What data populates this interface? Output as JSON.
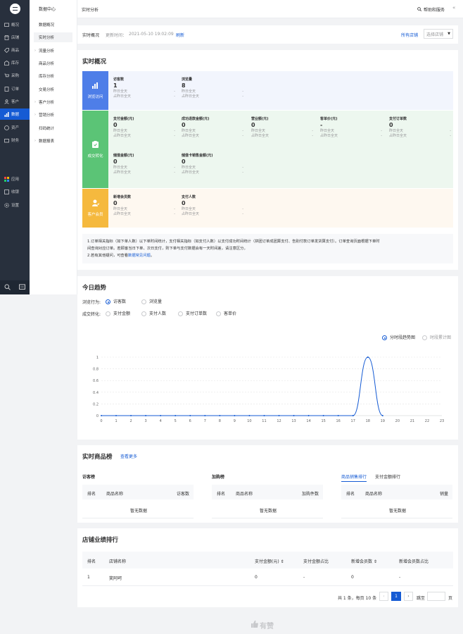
{
  "sidebar": {
    "items": [
      {
        "label": "概况"
      },
      {
        "label": "店铺"
      },
      {
        "label": "商品"
      },
      {
        "label": "库存"
      },
      {
        "label": "采购"
      },
      {
        "label": "订单"
      },
      {
        "label": "客户"
      },
      {
        "label": "数据"
      },
      {
        "label": "资产"
      },
      {
        "label": "财务"
      }
    ],
    "bottom_items": [
      {
        "label": "应用"
      },
      {
        "label": "收银"
      },
      {
        "label": "设置"
      }
    ]
  },
  "subnav": {
    "title": "数据中心",
    "items": [
      {
        "label": "数据概况"
      },
      {
        "label": "实时分析"
      },
      {
        "label": "流量分析"
      },
      {
        "label": "商品分析"
      },
      {
        "label": "库存分析"
      },
      {
        "label": "交易分析"
      },
      {
        "label": "客户分析"
      },
      {
        "label": "营销分析"
      },
      {
        "label": "扫码统计"
      },
      {
        "label": "数据报表"
      }
    ]
  },
  "header": {
    "breadcrumb": "实时分析",
    "help": "帮助和服务",
    "collapse": "«"
  },
  "toolbar": {
    "label": "实时概况",
    "update_label": "更新时间：",
    "update_time": "2021-05-10 19:02:09",
    "refresh": "刷新",
    "all_shops": "所有店铺",
    "shop_select": "选择店铺"
  },
  "overview": {
    "title": "实时概况",
    "groups": [
      {
        "label": "浏览访问",
        "metrics": [
          {
            "name": "访客数",
            "value": "1",
            "y": "昨日全天",
            "yv": "-",
            "s": "占昨日全天",
            "sv": "-"
          },
          {
            "name": "浏览量",
            "value": "8",
            "y": "昨日全天",
            "yv": "-",
            "s": "占昨日全天",
            "sv": "-"
          }
        ]
      },
      {
        "label": "成交转化",
        "metrics": [
          {
            "name": "支付金额(元)",
            "value": "0",
            "y": "昨日全天",
            "yv": "-",
            "s": "占昨日全天",
            "sv": "-"
          },
          {
            "name": "成功退款金额(元)",
            "value": "0",
            "y": "昨日全天",
            "yv": "-",
            "s": "占昨日全天",
            "sv": "-"
          },
          {
            "name": "营业额(元)",
            "value": "0",
            "y": "昨日全天",
            "yv": "-",
            "s": "占昨日全天",
            "sv": "-"
          },
          {
            "name": "客单价(元)",
            "value": "-",
            "y": "昨日全天",
            "yv": "-",
            "s": "占昨日全天",
            "sv": "-"
          },
          {
            "name": "支付订单数",
            "value": "0",
            "y": "昨日全天",
            "yv": "-",
            "s": "占昨日全天",
            "sv": "-"
          },
          {
            "name": "储值金额(元)",
            "value": "0",
            "y": "昨日全天",
            "yv": "-",
            "s": "占昨日全天",
            "sv": "-"
          },
          {
            "name": "储值卡销售金额(元)",
            "value": "0",
            "y": "昨日全天",
            "yv": "-",
            "s": "占昨日全天",
            "sv": "-"
          }
        ]
      },
      {
        "label": "客户会员",
        "metrics": [
          {
            "name": "新增会员数",
            "value": "0",
            "y": "昨日全天",
            "yv": "-",
            "s": "占昨日全天",
            "sv": "-"
          },
          {
            "name": "支付人数",
            "value": "0",
            "y": "昨日全天",
            "yv": "-",
            "s": "占昨日全天",
            "sv": "-"
          }
        ]
      }
    ],
    "note1": "1.订单相关指标（如下单人数）以下单时间统计，支付相关指标（如支付人数）以支付成功时间统计（拼团订单成团算支付、告别付款订单发货算支付）。订单查询页面根据下单时",
    "note1b": "间查询对应订单。若顾客当日下单、次日支付，则下单与支付数据会有一天时间差，请注意区分。",
    "note2": "2.若有其他疑问，可查看",
    "note2_link": "数据常见问题",
    "note2_end": "。",
    "colors": {
      "blue": "#4e7ee8",
      "green": "#5bc476",
      "orange": "#f5b93e",
      "blue_bg": "#f2f5fd",
      "green_bg": "#edf7ef",
      "orange_bg": "#fef8f0"
    }
  },
  "trend": {
    "title": "今日趋势",
    "behavior_label": "浏览行为:",
    "behavior_options": [
      "访客数",
      "浏览量"
    ],
    "conversion_label": "成交转化:",
    "conversion_options": [
      "支付金额",
      "支付人数",
      "支付订单数",
      "客单价"
    ],
    "view_options": [
      "分时段趋势图",
      "时段累计图"
    ]
  },
  "chart_data": {
    "type": "line",
    "x": [
      0,
      1,
      2,
      3,
      4,
      5,
      6,
      7,
      8,
      9,
      10,
      11,
      12,
      13,
      14,
      15,
      16,
      17,
      18,
      19
    ],
    "series": [
      {
        "values": [
          0,
          0,
          0,
          0,
          0,
          0,
          0,
          0,
          0,
          0,
          0,
          0,
          0,
          0,
          0,
          0,
          0,
          0,
          1,
          0
        ]
      }
    ],
    "x_ticks": [
      "0",
      "1",
      "2",
      "3",
      "4",
      "5",
      "6",
      "7",
      "8",
      "9",
      "10",
      "11",
      "12",
      "13",
      "14",
      "15",
      "16",
      "17",
      "18",
      "19",
      "20",
      "21",
      "22",
      "23"
    ],
    "y_ticks": [
      "0",
      "0.2",
      "0.4",
      "0.6",
      "0.8",
      "1"
    ],
    "xlim": [
      0,
      23
    ],
    "ylim": [
      0,
      1
    ],
    "grid": true,
    "color": "#155bd4"
  },
  "products": {
    "title": "实时商品榜",
    "more": "查看更多",
    "visitor": {
      "title": "访客榜",
      "cols": [
        "排名",
        "商品名称",
        "访客数"
      ],
      "empty": "暂无数据"
    },
    "cart": {
      "title": "加购榜",
      "cols": [
        "排名",
        "商品名称",
        "加购件数"
      ],
      "empty": "暂无数据"
    },
    "sales": {
      "tab_active": "商品销售排行",
      "tab_other": "支付金额排行",
      "cols": [
        "排名",
        "商品名称",
        "销量"
      ],
      "empty": "暂无数据"
    }
  },
  "ranking": {
    "title": "店铺业绩排行",
    "cols": [
      "排名",
      "店铺名称",
      "支付金额(元) ⇕",
      "支付金额占比",
      "新增会员数 ⇕",
      "新增会员数占比"
    ],
    "rows": [
      [
        "1",
        "笑阿呵",
        "0",
        "-",
        "0",
        "-"
      ]
    ],
    "pagination": {
      "summary": "共 1 条，每页 10 条",
      "page": "1",
      "jump": "跳至",
      "unit": "页",
      "prev": "‹",
      "next": "›"
    }
  },
  "footer": {
    "brand": "有赞"
  }
}
